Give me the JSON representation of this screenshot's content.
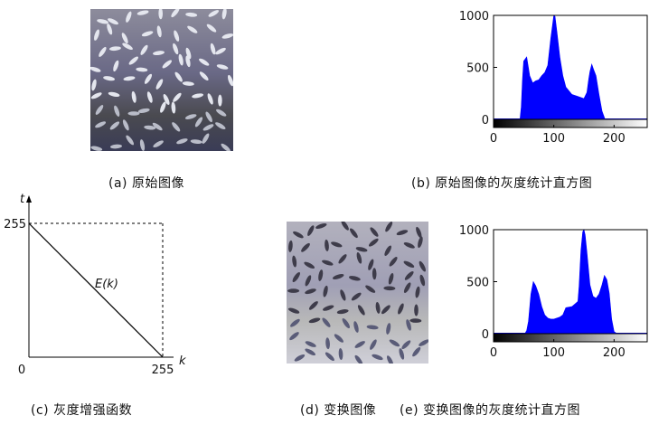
{
  "captions": {
    "a": "(a) 原始图像",
    "b": "(b) 原始图像的灰度统计直方图",
    "c": "(c) 灰度增强函数",
    "d": "(d) 变换图像",
    "e": "(e) 变换图像的灰度统计直方图"
  },
  "chart_data": [
    {
      "type": "area",
      "id": "hist_original",
      "x": [
        0,
        10,
        20,
        30,
        40,
        44,
        46,
        48,
        50,
        55,
        60,
        65,
        70,
        75,
        80,
        85,
        90,
        95,
        100,
        102,
        105,
        110,
        115,
        120,
        130,
        140,
        150,
        155,
        158,
        160,
        163,
        166,
        170,
        175,
        180,
        185,
        190,
        200,
        255
      ],
      "y": [
        0,
        0,
        0,
        0,
        0,
        5,
        120,
        380,
        560,
        600,
        420,
        350,
        370,
        380,
        420,
        450,
        520,
        780,
        1000,
        990,
        850,
        600,
        420,
        310,
        240,
        220,
        200,
        260,
        390,
        460,
        530,
        480,
        420,
        240,
        80,
        0,
        0,
        0,
        0
      ],
      "xlim": [
        0,
        255
      ],
      "ylim": [
        0,
        1000
      ],
      "xticks": [
        0,
        100,
        200
      ],
      "yticks": [
        0,
        500,
        1000
      ],
      "color": "#0000ff",
      "colorbar": "gray"
    },
    {
      "type": "line",
      "id": "enhance_function",
      "x": [
        0,
        255
      ],
      "y": [
        255,
        0
      ],
      "xlabel": "k",
      "ylabel": "t",
      "xtick_labels": [
        "0",
        "255"
      ],
      "ytick_labels": [
        "255"
      ],
      "annotation": "E(k)",
      "dashed_box": [
        255,
        255
      ]
    },
    {
      "type": "area",
      "id": "hist_transformed",
      "x": [
        0,
        40,
        52,
        55,
        58,
        62,
        66,
        70,
        75,
        80,
        85,
        90,
        95,
        100,
        105,
        110,
        115,
        120,
        130,
        140,
        142,
        145,
        148,
        150,
        152,
        155,
        160,
        165,
        170,
        175,
        180,
        184,
        188,
        192,
        196,
        200,
        205,
        208,
        255
      ],
      "y": [
        0,
        0,
        0,
        30,
        120,
        380,
        500,
        460,
        380,
        260,
        180,
        150,
        140,
        140,
        150,
        160,
        180,
        250,
        260,
        310,
        460,
        800,
        980,
        1000,
        950,
        780,
        470,
        360,
        340,
        380,
        470,
        560,
        520,
        390,
        140,
        20,
        0,
        0,
        0
      ],
      "xlim": [
        0,
        255
      ],
      "ylim": [
        0,
        1000
      ],
      "xticks": [
        0,
        100,
        200
      ],
      "yticks": [
        0,
        500,
        1000
      ],
      "color": "#0000ff",
      "colorbar": "gray"
    }
  ]
}
